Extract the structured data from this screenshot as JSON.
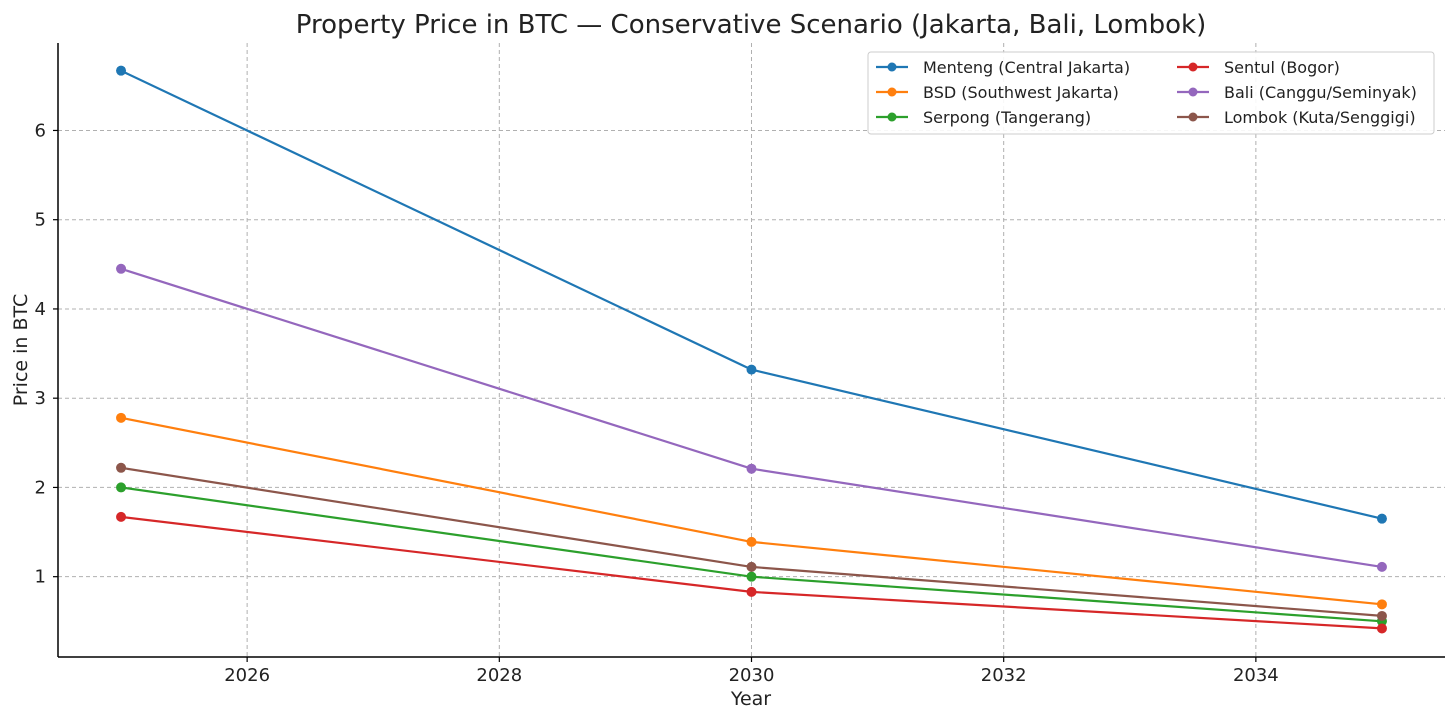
{
  "chart_data": {
    "type": "line",
    "title": "Property Price in BTC — Conservative Scenario (Jakarta, Bali, Lombok)",
    "xlabel": "Year",
    "ylabel": "Price in BTC",
    "xlim": [
      2024.5,
      2035.5
    ],
    "ylim": [
      0.1,
      6.98
    ],
    "xticks": [
      2026,
      2028,
      2030,
      2032,
      2034
    ],
    "yticks": [
      1,
      2,
      3,
      4,
      5,
      6
    ],
    "grid": true,
    "legend_position": "top-right",
    "legend_columns": 2,
    "x": [
      2025,
      2030,
      2035
    ],
    "series": [
      {
        "name": "Menteng (Central Jakarta)",
        "color": "#1f77b4",
        "values": [
          6.67,
          3.32,
          1.65
        ]
      },
      {
        "name": "BSD (Southwest Jakarta)",
        "color": "#ff7f0e",
        "values": [
          2.78,
          1.39,
          0.69
        ]
      },
      {
        "name": "Serpong (Tangerang)",
        "color": "#2ca02c",
        "values": [
          2.0,
          1.0,
          0.5
        ]
      },
      {
        "name": "Sentul (Bogor)",
        "color": "#d62728",
        "values": [
          1.67,
          0.83,
          0.42
        ]
      },
      {
        "name": "Bali (Canggu/Seminyak)",
        "color": "#9467bd",
        "values": [
          4.45,
          2.21,
          1.11
        ]
      },
      {
        "name": "Lombok (Kuta/Senggigi)",
        "color": "#8c564b",
        "values": [
          2.22,
          1.11,
          0.56
        ]
      }
    ]
  }
}
